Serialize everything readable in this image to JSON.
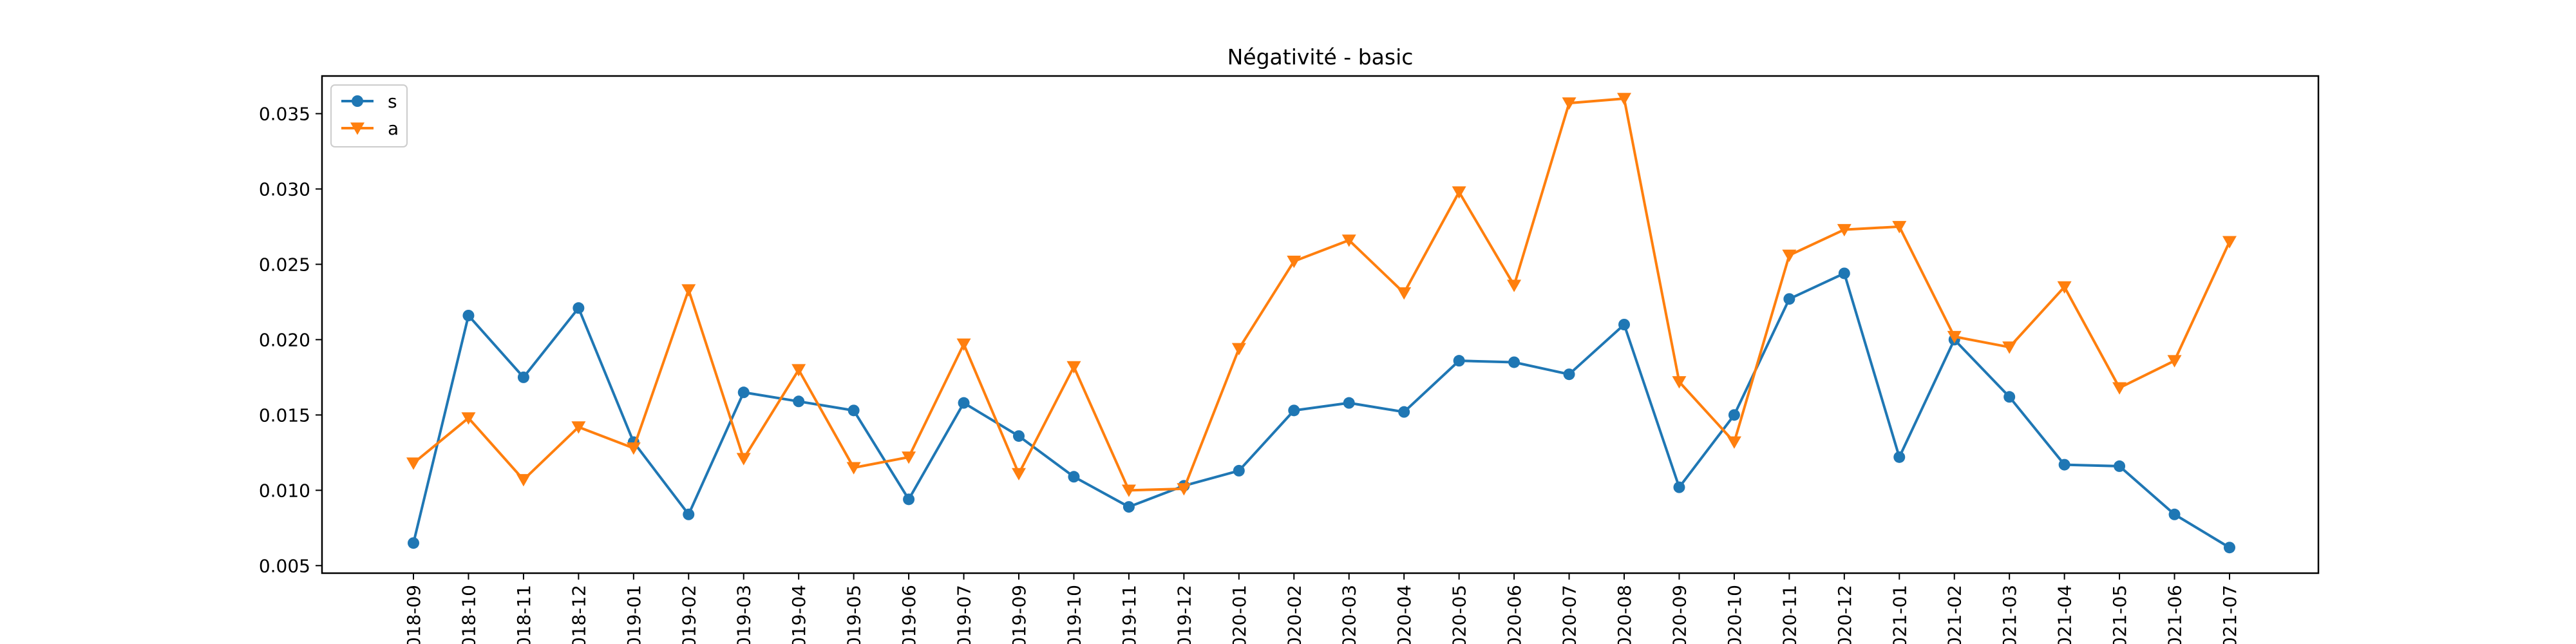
{
  "chart_data": {
    "type": "line",
    "title": "Négativité - basic",
    "xlabel": "",
    "ylabel": "",
    "categories": [
      "2018-09",
      "2018-10",
      "2018-11",
      "2018-12",
      "2019-01",
      "2019-02",
      "2019-03",
      "2019-04",
      "2019-05",
      "2019-06",
      "2019-07",
      "2019-09",
      "2019-10",
      "2019-11",
      "2019-12",
      "2020-01",
      "2020-02",
      "2020-03",
      "2020-04",
      "2020-05",
      "2020-06",
      "2020-07",
      "2020-08",
      "2020-09",
      "2020-10",
      "2020-11",
      "2020-12",
      "2021-01",
      "2021-02",
      "2021-03",
      "2021-04",
      "2021-05",
      "2021-06",
      "2021-07"
    ],
    "ylim": [
      0.0045,
      0.0375
    ],
    "yticks": [
      0.005,
      0.01,
      0.015,
      0.02,
      0.025,
      0.03,
      0.035
    ],
    "ytick_labels": [
      "0.005",
      "0.010",
      "0.015",
      "0.020",
      "0.025",
      "0.030",
      "0.035"
    ],
    "grid": false,
    "legend_position": "top-left",
    "series": [
      {
        "name": "s",
        "color": "#1f77b4",
        "marker": "circle",
        "values": [
          0.0065,
          0.0216,
          0.0175,
          0.0221,
          0.0132,
          0.0084,
          0.0165,
          0.0159,
          0.0153,
          0.0094,
          0.0158,
          0.0136,
          0.0109,
          0.0089,
          0.0103,
          0.0113,
          0.0153,
          0.0158,
          0.0152,
          0.0186,
          0.0185,
          0.0177,
          0.021,
          0.0102,
          0.015,
          0.0227,
          0.0244,
          0.0122,
          0.02,
          0.0162,
          0.0117,
          0.0116,
          0.0084,
          0.0062
        ]
      },
      {
        "name": "a",
        "color": "#ff7f0e",
        "marker": "triangle-down",
        "values": [
          0.0118,
          0.0148,
          0.0107,
          0.0142,
          0.0128,
          0.0233,
          0.0121,
          0.018,
          0.0115,
          0.0122,
          0.0197,
          0.0111,
          0.0182,
          0.01,
          0.0101,
          0.0194,
          0.0252,
          0.0266,
          0.0231,
          0.0298,
          0.0236,
          0.0357,
          0.036,
          0.0172,
          0.0132,
          0.0256,
          0.0273,
          0.0275,
          0.0202,
          0.0195,
          0.0235,
          0.0168,
          0.0186,
          0.0265
        ]
      }
    ]
  }
}
